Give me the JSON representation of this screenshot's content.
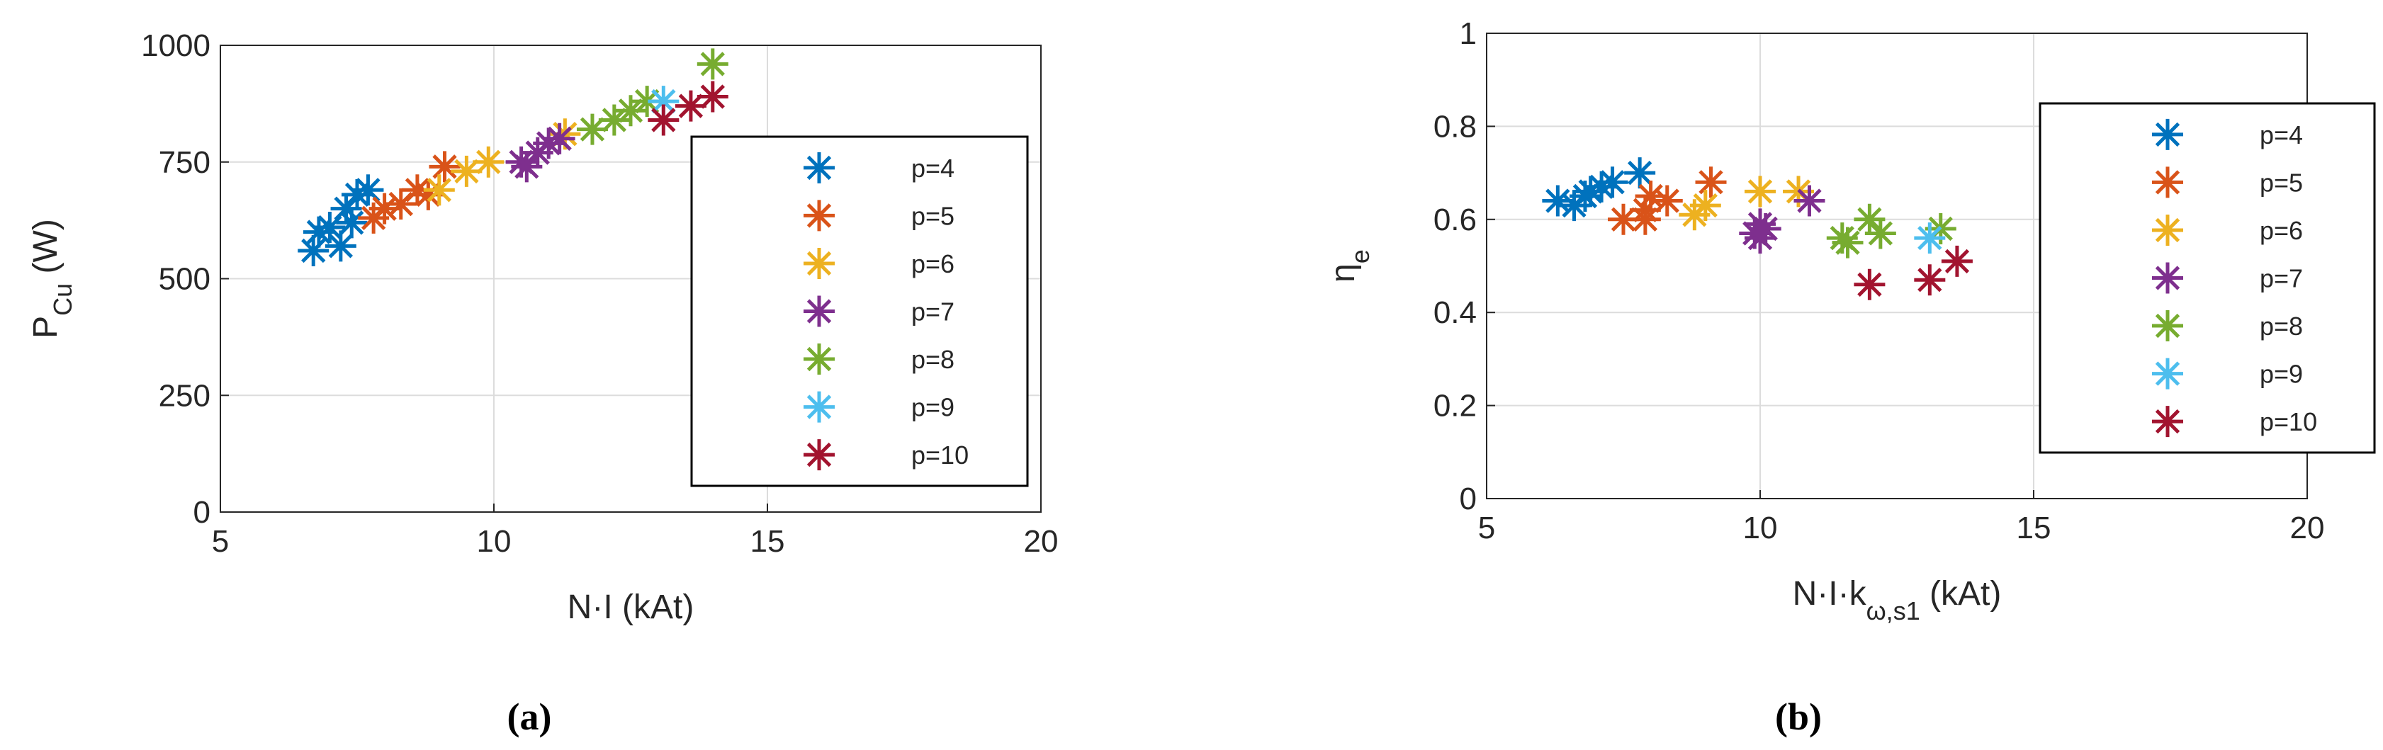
{
  "chart_data": [
    {
      "type": "scatter",
      "caption": "(a)",
      "grid": true,
      "xlabel": {
        "text": "N·I (kAt)"
      },
      "ylabel": {
        "text": "P",
        "sub": "Cu",
        "suffix": " (W)"
      },
      "xlim": [
        5,
        20
      ],
      "xticks": [
        5,
        10,
        15,
        20
      ],
      "ylim": [
        0,
        1000
      ],
      "yticks": [
        0,
        250,
        500,
        750,
        1000
      ],
      "series": [
        {
          "name": "p=4",
          "color": "#0072BD",
          "x": [
            6.7,
            6.8,
            7.0,
            7.2,
            7.3,
            7.5,
            7.7,
            7.4
          ],
          "y": [
            560,
            600,
            610,
            570,
            650,
            680,
            690,
            620
          ]
        },
        {
          "name": "p=5",
          "color": "#D95319",
          "x": [
            7.8,
            8.0,
            8.3,
            8.6,
            8.8,
            9.1
          ],
          "y": [
            630,
            650,
            660,
            690,
            680,
            740
          ]
        },
        {
          "name": "p=6",
          "color": "#EDB120",
          "x": [
            9.0,
            9.5,
            9.9,
            11.3
          ],
          "y": [
            690,
            730,
            750,
            810
          ]
        },
        {
          "name": "p=7",
          "color": "#7E2F8E",
          "x": [
            10.5,
            10.8,
            11.0,
            11.2,
            10.6
          ],
          "y": [
            750,
            770,
            790,
            800,
            740
          ]
        },
        {
          "name": "p=8",
          "color": "#77AC30",
          "x": [
            11.8,
            12.2,
            12.5,
            12.8,
            14.0
          ],
          "y": [
            820,
            840,
            860,
            880,
            960
          ]
        },
        {
          "name": "p=9",
          "color": "#4DBEEE",
          "x": [
            13.1
          ],
          "y": [
            880
          ]
        },
        {
          "name": "p=10",
          "color": "#A2142F",
          "x": [
            13.1,
            13.6,
            14.0
          ],
          "y": [
            840,
            870,
            890
          ]
        }
      ]
    },
    {
      "type": "scatter",
      "caption": "(b)",
      "grid": true,
      "xlabel": {
        "text": "N·I·k",
        "sub": "ω,s1",
        "suffix": " (kAt)"
      },
      "ylabel": {
        "text": "η",
        "sub": "e"
      },
      "xlim": [
        5,
        20
      ],
      "xticks": [
        5,
        10,
        15,
        20
      ],
      "ylim": [
        0,
        1
      ],
      "yticks": [
        0,
        0.2,
        0.4,
        0.6,
        0.8,
        1
      ],
      "series": [
        {
          "name": "p=4",
          "color": "#0072BD",
          "x": [
            6.3,
            6.6,
            6.9,
            7.1,
            7.3,
            7.8,
            6.8
          ],
          "y": [
            0.64,
            0.63,
            0.66,
            0.67,
            0.68,
            0.7,
            0.65
          ]
        },
        {
          "name": "p=5",
          "color": "#D95319",
          "x": [
            7.5,
            7.9,
            8.0,
            8.3,
            9.1,
            7.9
          ],
          "y": [
            0.6,
            0.62,
            0.65,
            0.64,
            0.68,
            0.6
          ]
        },
        {
          "name": "p=6",
          "color": "#EDB120",
          "x": [
            8.8,
            9.0,
            10.0,
            10.7
          ],
          "y": [
            0.61,
            0.63,
            0.66,
            0.66
          ]
        },
        {
          "name": "p=7",
          "color": "#7E2F8E",
          "x": [
            9.9,
            10.0,
            10.1,
            10.0,
            10.9
          ],
          "y": [
            0.57,
            0.59,
            0.58,
            0.56,
            0.64
          ]
        },
        {
          "name": "p=8",
          "color": "#77AC30",
          "x": [
            11.5,
            11.6,
            12.0,
            12.2,
            13.3
          ],
          "y": [
            0.56,
            0.55,
            0.6,
            0.57,
            0.58
          ]
        },
        {
          "name": "p=9",
          "color": "#4DBEEE",
          "x": [
            13.1
          ],
          "y": [
            0.56
          ]
        },
        {
          "name": "p=10",
          "color": "#A2142F",
          "x": [
            12.0,
            13.1,
            13.6
          ],
          "y": [
            0.46,
            0.47,
            0.51
          ]
        }
      ]
    }
  ]
}
